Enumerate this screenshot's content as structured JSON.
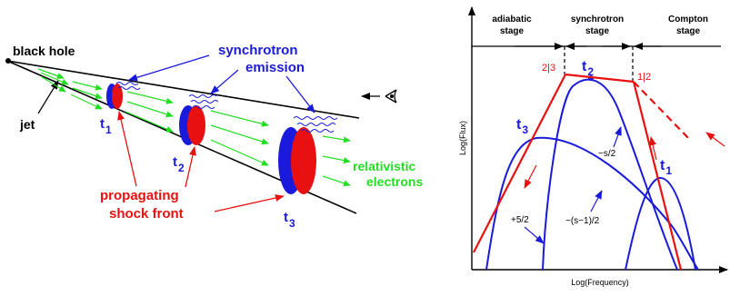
{
  "left_diagram": {
    "black_hole_label": "black hole",
    "jet_label": "jet",
    "synchrotron_label_line1": "synchrotron",
    "synchrotron_label_line2": "emission",
    "electrons_label_line1": "relativistic",
    "electrons_label_line2": "electrons",
    "shock_label_line1": "propagating",
    "shock_label_line2": "shock front",
    "time_labels": [
      {
        "t": "t",
        "sub": "1"
      },
      {
        "t": "t",
        "sub": "2"
      },
      {
        "t": "t",
        "sub": "3"
      }
    ]
  },
  "right_diagram": {
    "stage_adiabatic_line1": "adiabatic",
    "stage_adiabatic_line2": "stage",
    "stage_synchrotron_line1": "synchrotron",
    "stage_synchrotron_line2": "stage",
    "stage_compton_line1": "Compton",
    "stage_compton_line2": "stage",
    "ylabel": "Log(Flux)",
    "xlabel": "Log(Frequency)",
    "transition_23": "2|3",
    "transition_12": "1|2",
    "slope_rise": "+5/2",
    "slope_decay": "−(s−1)/2",
    "slope_peak": "−s/2",
    "curve_labels": [
      {
        "t": "t",
        "sub": "1"
      },
      {
        "t": "t",
        "sub": "2"
      },
      {
        "t": "t",
        "sub": "3"
      }
    ]
  },
  "colors": {
    "blue": "#1a1adc",
    "red": "#e81010",
    "green": "#22dd22",
    "black": "#000000"
  }
}
